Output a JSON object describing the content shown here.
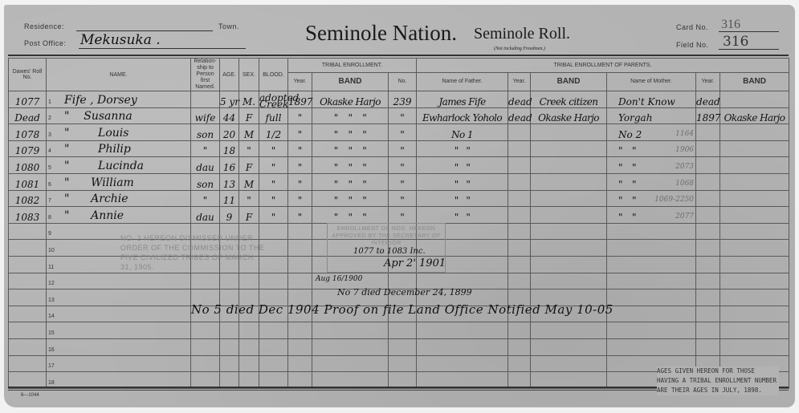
{
  "header": {
    "residence_label": "Residence:",
    "town_label": "Town.",
    "post_office_label": "Post Office:",
    "post_office_value": "Mekusuka .",
    "title": "Seminole Nation.",
    "roll_title": "Seminole Roll.",
    "roll_subtitle": "(Not including Freedmen.)",
    "card_no_label": "Card No.",
    "card_no_value": "316",
    "field_no_label": "Field No.",
    "field_no_value": "316"
  },
  "columns": {
    "dawes": "Dawes' Roll No.",
    "name": "NAME.",
    "relationship": "Relation-ship to Person first Named.",
    "age": "AGE.",
    "sex": "SEX.",
    "blood": "BLOOD.",
    "tribal_enrollment": "TRIBAL ENROLLMENT.",
    "year": "Year.",
    "band": "BAND",
    "no": "No.",
    "parents": "TRIBAL ENROLLMENT OF PARENTS.",
    "father": "Name of Father.",
    "father_year": "Year.",
    "father_band": "BAND",
    "mother": "Name of Mother.",
    "mother_year": "Year.",
    "mother_band": "BAND"
  },
  "rows": [
    {
      "dawes": "1077",
      "num": "1",
      "name": "Fife , Dorsey",
      "rel": "",
      "age": "5 yr",
      "sex": "M.",
      "blood": "adopted Creek",
      "year": "1897",
      "band": "Okaske Harjo",
      "no": "239",
      "father": "James Fife",
      "fyear": "dead",
      "fband": "Creek citizen",
      "mother": "Don't Know",
      "myear": "dead",
      "mband": "",
      "pencil": ""
    },
    {
      "dawes": "Dead",
      "num": "2",
      "name": "\"    Susanna",
      "rel": "wife",
      "age": "44",
      "sex": "F",
      "blood": "full",
      "year": "\"",
      "band": "\"    \"    \"",
      "no": "\"",
      "father": "Ewharlock Yoholo",
      "fyear": "dead",
      "fband": "Okaske Harjo",
      "mother": "Yorgah",
      "myear": "1897",
      "mband": "Okaske Harjo",
      "pencil": ""
    },
    {
      "dawes": "1078",
      "num": "3",
      "name": "\"        Louis",
      "rel": "son",
      "age": "20",
      "sex": "M",
      "blood": "1/2",
      "year": "\"",
      "band": "\"    \"    \"",
      "no": "\"",
      "father": "No 1",
      "fyear": "",
      "fband": "",
      "mother": "No 2",
      "myear": "",
      "mband": "",
      "pencil": "1164"
    },
    {
      "dawes": "1079",
      "num": "4",
      "name": "\"        Philip",
      "rel": "\"",
      "age": "18",
      "sex": "\"",
      "blood": "\"",
      "year": "\"",
      "band": "\"    \"    \"",
      "no": "\"",
      "father": "\"   \"",
      "fyear": "",
      "fband": "",
      "mother": "\"   \"",
      "myear": "",
      "mband": "",
      "pencil": "1906"
    },
    {
      "dawes": "1080",
      "num": "5",
      "name": "\"        Lucinda",
      "rel": "dau",
      "age": "16",
      "sex": "F",
      "blood": "\"",
      "year": "\"",
      "band": "\"    \"    \"",
      "no": "\"",
      "father": "\"   \"",
      "fyear": "",
      "fband": "",
      "mother": "\"   \"",
      "myear": "",
      "mband": "",
      "pencil": "2073"
    },
    {
      "dawes": "1081",
      "num": "6",
      "name": "\"      William",
      "rel": "son",
      "age": "13",
      "sex": "M",
      "blood": "\"",
      "year": "\"",
      "band": "\"    \"    \"",
      "no": "\"",
      "father": "\"   \"",
      "fyear": "",
      "fband": "",
      "mother": "\"   \"",
      "myear": "",
      "mband": "",
      "pencil": "1068"
    },
    {
      "dawes": "1082",
      "num": "7",
      "name": "\"      Archie",
      "rel": "\"",
      "age": "11",
      "sex": "\"",
      "blood": "\"",
      "year": "\"",
      "band": "\"    \"    \"",
      "no": "\"",
      "father": "\"   \"",
      "fyear": "",
      "fband": "",
      "mother": "\"   \"",
      "myear": "",
      "mband": "",
      "pencil": "1069-2250"
    },
    {
      "dawes": "1083",
      "num": "8",
      "name": "\"      Annie",
      "rel": "dau",
      "age": "9",
      "sex": "F",
      "blood": "\"",
      "year": "\"",
      "band": "\"    \"    \"",
      "no": "\"",
      "father": "\"   \"",
      "fyear": "",
      "fband": "",
      "mother": "\"   \"",
      "myear": "",
      "mband": "",
      "pencil": "2077"
    },
    {
      "num": "9"
    },
    {
      "num": "10"
    },
    {
      "num": "11"
    },
    {
      "num": "12"
    },
    {
      "num": "13"
    },
    {
      "num": "14"
    },
    {
      "num": "15"
    },
    {
      "num": "16"
    },
    {
      "num": "17"
    },
    {
      "num": "18"
    }
  ],
  "stamps": {
    "dismissed": "No. 2 hereon dismissed under order of the Commission to the Five Civilized Tribes of March 31, 1905.",
    "enrollment": "Enrollment of Nos. hereon approved by the Secretary of Interior"
  },
  "notes": {
    "enrollment_nos": "1077 to 1083 Inc.",
    "approved_date": "Apr 2' 1901",
    "aug_date": "Aug 16/1900",
    "no7_died": "No 7 died December 24, 1899",
    "no5_died": "No 5 died Dec 1904 Proof on file Land Office Notified May 10-05"
  },
  "footer": {
    "form_no": "6—1044",
    "ages_note": "AGES GIVEN HEREON FOR THOSE HAVING A TRIBAL ENROLLMENT NUMBER ARE THEIR AGES IN JULY, 1898."
  }
}
